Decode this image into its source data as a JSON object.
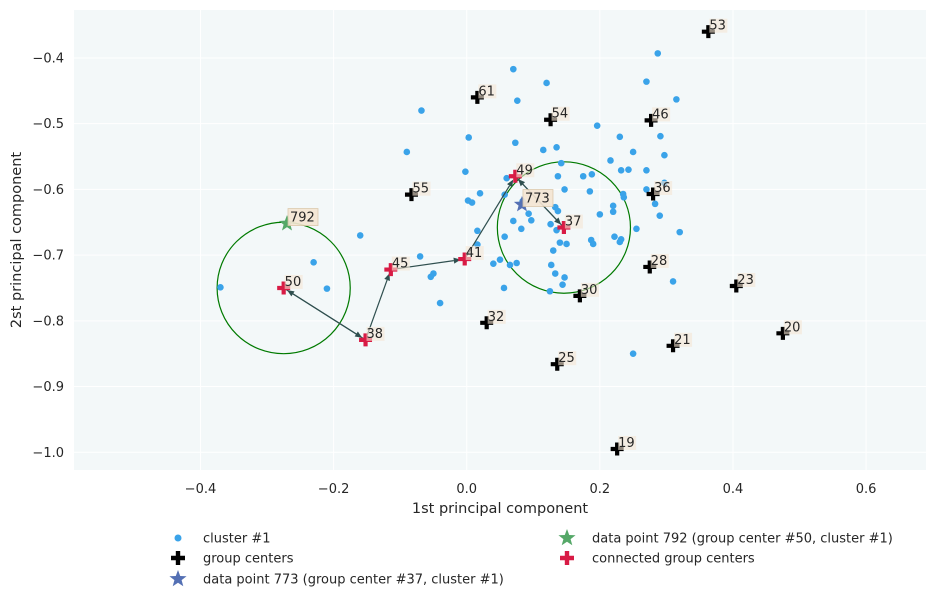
{
  "chart_data": {
    "type": "scatter",
    "xlabel": "1st principal component",
    "ylabel": "2st principal component",
    "xlim": [
      -0.59,
      0.69
    ],
    "ylim": [
      -1.027,
      -0.327
    ],
    "xticks": [
      "−0.4",
      "−0.2",
      "0.0",
      "0.2",
      "0.4",
      "0.6"
    ],
    "xtick_values": [
      -0.4,
      -0.2,
      0.0,
      0.2,
      0.4,
      0.6
    ],
    "yticks": [
      "−1.0",
      "−0.9",
      "−0.8",
      "−0.7",
      "−0.6",
      "−0.5",
      "−0.4"
    ],
    "ytick_values": [
      -1.0,
      -0.9,
      -0.8,
      -0.7,
      -0.6,
      -0.5,
      -0.4
    ],
    "grid": true,
    "background": "#f3f8f9",
    "legend_placement": "below plot",
    "cluster_points": {
      "name": "cluster #1",
      "color": "#3aa3e9",
      "points": [
        [
          0.07,
          -0.417
        ],
        [
          0.12,
          -0.438
        ],
        [
          0.287,
          -0.393
        ],
        [
          0.27,
          -0.436
        ],
        [
          0.076,
          -0.465
        ],
        [
          0.315,
          -0.463
        ],
        [
          -0.068,
          -0.48
        ],
        [
          0.196,
          -0.503
        ],
        [
          0.003,
          -0.521
        ],
        [
          0.23,
          -0.52
        ],
        [
          0.291,
          -0.519
        ],
        [
          0.135,
          -0.536
        ],
        [
          0.073,
          -0.529
        ],
        [
          0.115,
          -0.54
        ],
        [
          -0.09,
          -0.543
        ],
        [
          0.25,
          -0.543
        ],
        [
          0.297,
          -0.548
        ],
        [
          0.216,
          -0.556
        ],
        [
          0.142,
          -0.56
        ],
        [
          0.232,
          -0.571
        ],
        [
          0.243,
          -0.57
        ],
        [
          0.27,
          -0.571
        ],
        [
          -0.002,
          -0.573
        ],
        [
          0.188,
          -0.577
        ],
        [
          0.175,
          -0.58
        ],
        [
          0.06,
          -0.583
        ],
        [
          0.297,
          -0.59
        ],
        [
          0.137,
          -0.58
        ],
        [
          0.147,
          -0.6
        ],
        [
          0.27,
          -0.6
        ],
        [
          0.02,
          -0.606
        ],
        [
          0.185,
          -0.603
        ],
        [
          0.235,
          -0.607
        ],
        [
          0.057,
          -0.608
        ],
        [
          0.002,
          -0.617
        ],
        [
          0.084,
          -0.618
        ],
        [
          0.008,
          -0.62
        ],
        [
          0.236,
          -0.612
        ],
        [
          0.283,
          -0.622
        ],
        [
          0.22,
          -0.625
        ],
        [
          0.093,
          -0.637
        ],
        [
          0.133,
          -0.627
        ],
        [
          0.137,
          -0.633
        ],
        [
          0.2,
          -0.638
        ],
        [
          0.22,
          -0.634
        ],
        [
          0.29,
          -0.64
        ],
        [
          0.07,
          -0.648
        ],
        [
          0.097,
          -0.647
        ],
        [
          0.126,
          -0.653
        ],
        [
          0.082,
          -0.66
        ],
        [
          0.255,
          -0.66
        ],
        [
          0.016,
          -0.663
        ],
        [
          0.135,
          -0.662
        ],
        [
          0.232,
          -0.676
        ],
        [
          -0.16,
          -0.67
        ],
        [
          0.057,
          -0.672
        ],
        [
          0.14,
          -0.681
        ],
        [
          0.187,
          -0.677
        ],
        [
          0.222,
          -0.672
        ],
        [
          0.32,
          -0.665
        ],
        [
          0.016,
          -0.684
        ],
        [
          0.15,
          -0.683
        ],
        [
          0.19,
          -0.683
        ],
        [
          0.23,
          -0.68
        ],
        [
          0.13,
          -0.693
        ],
        [
          0.31,
          -0.74
        ],
        [
          -0.07,
          -0.702
        ],
        [
          0.05,
          -0.707
        ],
        [
          -0.23,
          -0.711
        ],
        [
          0.04,
          -0.713
        ],
        [
          0.127,
          -0.715
        ],
        [
          0.065,
          -0.715
        ],
        [
          0.075,
          -0.712
        ],
        [
          -0.05,
          -0.728
        ],
        [
          0.133,
          -0.728
        ],
        [
          -0.054,
          -0.733
        ],
        [
          0.147,
          -0.734
        ],
        [
          0.144,
          -0.745
        ],
        [
          -0.37,
          -0.749
        ],
        [
          -0.21,
          -0.751
        ],
        [
          0.056,
          -0.75
        ],
        [
          0.125,
          -0.755
        ],
        [
          -0.04,
          -0.773
        ],
        [
          0.25,
          -0.85
        ]
      ]
    },
    "group_centers": {
      "name": "group centers",
      "color": "#000000",
      "points": [
        {
          "label": "53",
          "x": 0.363,
          "y": -0.36
        },
        {
          "label": "61",
          "x": 0.016,
          "y": -0.46
        },
        {
          "label": "54",
          "x": 0.126,
          "y": -0.494
        },
        {
          "label": "46",
          "x": 0.277,
          "y": -0.495
        },
        {
          "label": "55",
          "x": -0.083,
          "y": -0.608
        },
        {
          "label": "36",
          "x": 0.28,
          "y": -0.607
        },
        {
          "label": "28",
          "x": 0.275,
          "y": -0.718
        },
        {
          "label": "23",
          "x": 0.405,
          "y": -0.747
        },
        {
          "label": "30",
          "x": 0.17,
          "y": -0.762
        },
        {
          "label": "32",
          "x": 0.03,
          "y": -0.803
        },
        {
          "label": "20",
          "x": 0.475,
          "y": -0.819
        },
        {
          "label": "21",
          "x": 0.31,
          "y": -0.838
        },
        {
          "label": "25",
          "x": 0.136,
          "y": -0.866
        },
        {
          "label": "19",
          "x": 0.226,
          "y": -0.995
        }
      ]
    },
    "connected_centers": {
      "name": "connected group centers",
      "color": "#d81b45",
      "points": [
        {
          "label": "49",
          "x": 0.073,
          "y": -0.58
        },
        {
          "label": "37",
          "x": 0.146,
          "y": -0.658
        },
        {
          "label": "45",
          "x": -0.114,
          "y": -0.722
        },
        {
          "label": "41",
          "x": -0.003,
          "y": -0.706
        },
        {
          "label": "50",
          "x": -0.275,
          "y": -0.75
        },
        {
          "label": "38",
          "x": -0.152,
          "y": -0.829
        }
      ]
    },
    "arrows": [
      {
        "from": "50",
        "to": "38"
      },
      {
        "from": "38",
        "to": "50"
      },
      {
        "from": "38",
        "to": "45"
      },
      {
        "from": "45",
        "to": "41"
      },
      {
        "from": "41",
        "to": "49"
      },
      {
        "from": "37",
        "to": "49"
      },
      {
        "from": "49",
        "to": "37"
      }
    ],
    "circles": [
      {
        "center": "50",
        "radius": 0.1,
        "color": "#007a00"
      },
      {
        "center": "37",
        "radius": 0.1,
        "color": "#007a00"
      }
    ],
    "highlight_points": [
      {
        "name": "data point 773 (group center #37, cluster #1)",
        "label": "773",
        "marker": "star",
        "color": "#5470b4",
        "x": 0.083,
        "y": -0.623
      },
      {
        "name": "data point 792 (group center #50, cluster #1)",
        "label": "792",
        "marker": "star",
        "color": "#55a868",
        "x": -0.27,
        "y": -0.652
      }
    ],
    "legend": [
      {
        "label": "cluster #1",
        "marker": "dot",
        "color": "#3aa3e9"
      },
      {
        "label": "group centers",
        "marker": "plus",
        "color": "#000000"
      },
      {
        "label": "data point 773 (group center #37, cluster #1)",
        "marker": "star",
        "color": "#5470b4"
      },
      {
        "label": "data point 792 (group center #50, cluster #1)",
        "marker": "star",
        "color": "#55a868"
      },
      {
        "label": "connected group centers",
        "marker": "plus",
        "color": "#d81b45"
      }
    ]
  }
}
